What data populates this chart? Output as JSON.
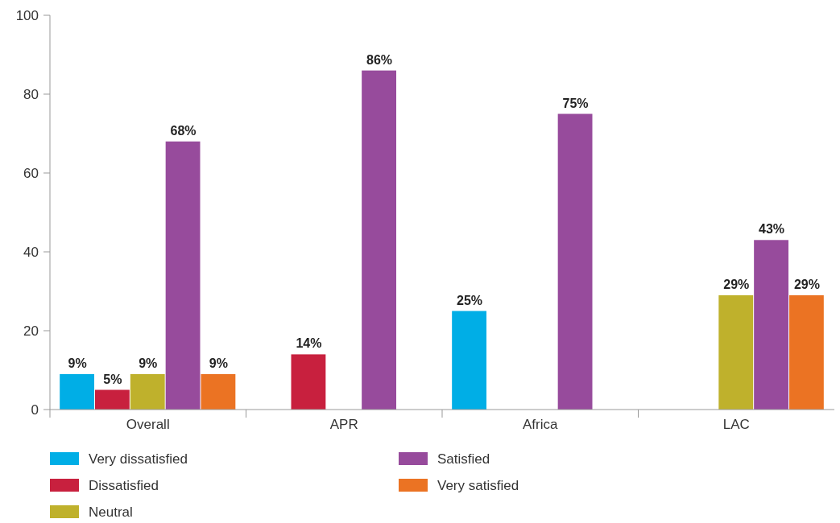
{
  "chart_data": {
    "type": "bar",
    "categories": [
      "Overall",
      "APR",
      "Africa",
      "LAC"
    ],
    "series": [
      {
        "name": "Very dissatisfied",
        "color": "#00aee6",
        "values": [
          9,
          null,
          25,
          null
        ],
        "value_labels": [
          "9%",
          null,
          "25%",
          null
        ]
      },
      {
        "name": "Dissatisfied",
        "color": "#c8203e",
        "values": [
          5,
          14,
          null,
          null
        ],
        "value_labels": [
          "5%",
          "14%",
          null,
          null
        ]
      },
      {
        "name": "Neutral",
        "color": "#bfb12c",
        "values": [
          9,
          null,
          null,
          29
        ],
        "value_labels": [
          "9%",
          null,
          null,
          "29%"
        ]
      },
      {
        "name": "Satisfied",
        "color": "#974b9c",
        "values": [
          68,
          86,
          75,
          43
        ],
        "value_labels": [
          "68%",
          "86%",
          "75%",
          "43%"
        ]
      },
      {
        "name": "Very satisfied",
        "color": "#eb7323",
        "values": [
          9,
          null,
          null,
          29
        ],
        "value_labels": [
          "9%",
          null,
          null,
          "29%"
        ]
      }
    ],
    "ylim": [
      0,
      100
    ],
    "yticks": [
      0,
      20,
      40,
      60,
      80,
      100
    ],
    "grid": false,
    "legend": "bottom"
  }
}
